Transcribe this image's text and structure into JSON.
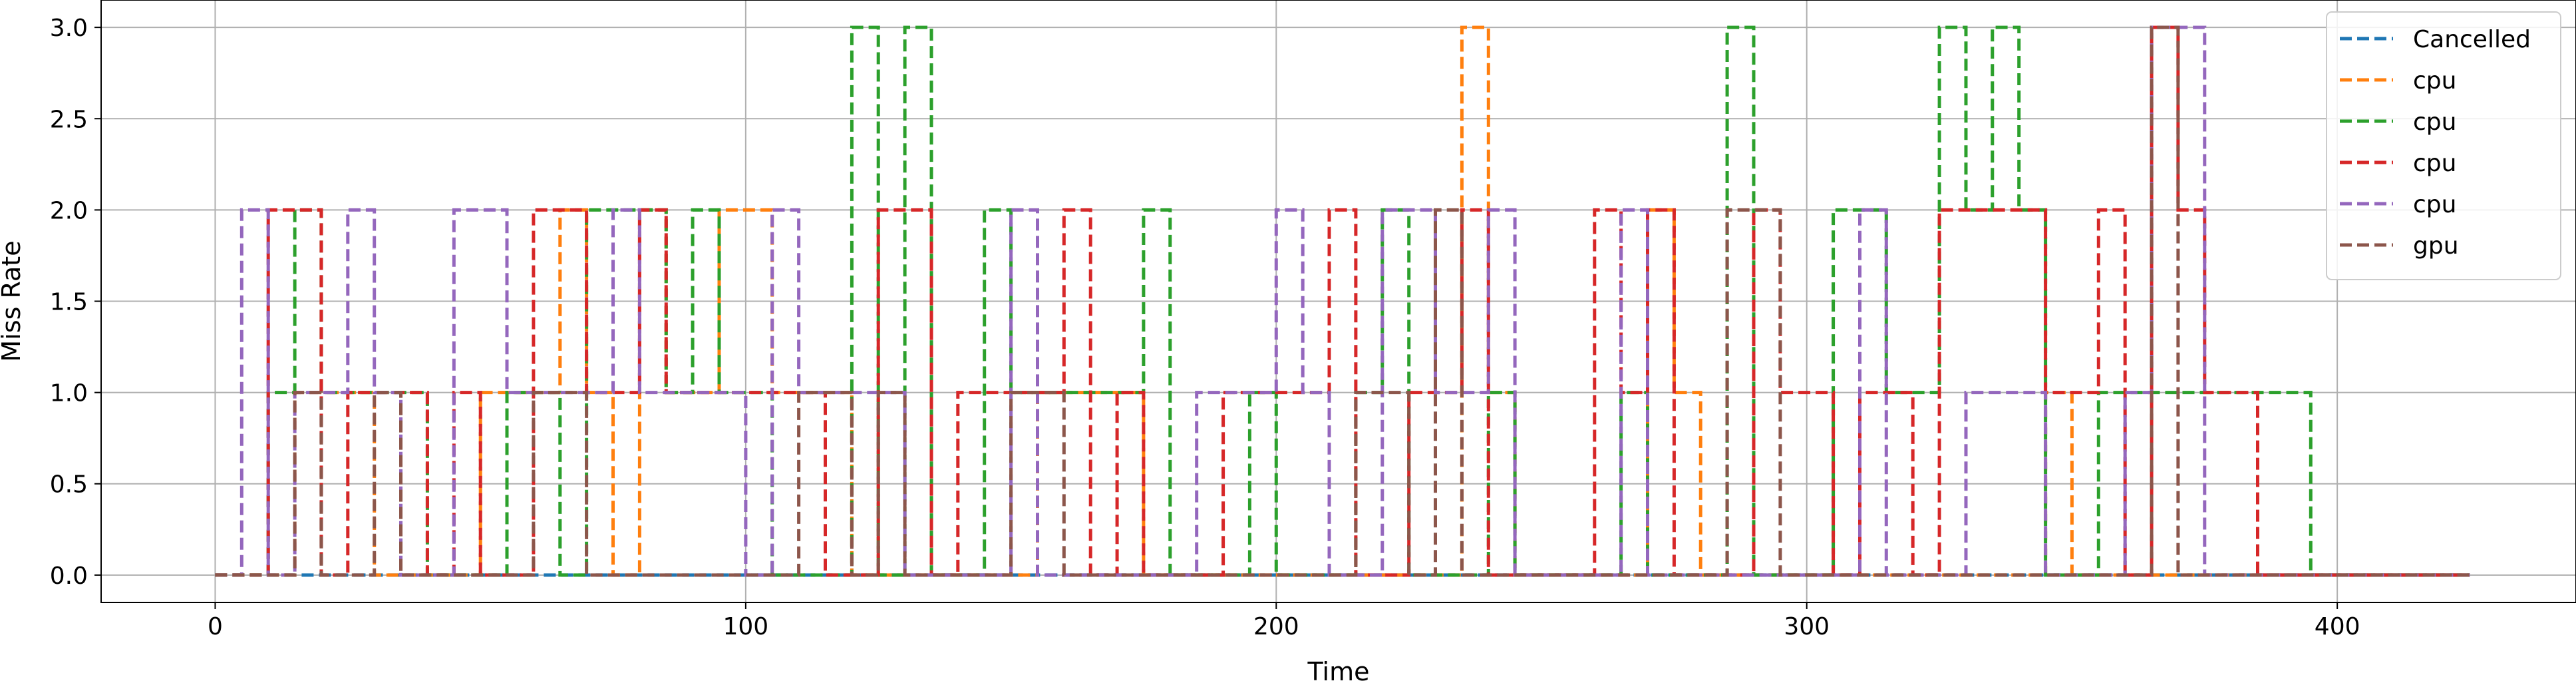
{
  "chart_data": {
    "type": "line",
    "step": "post",
    "title": "",
    "xlabel": "Time",
    "ylabel": "Miss Rate",
    "xlim": [
      -21.5,
      445
    ],
    "ylim": [
      -0.15,
      3.15
    ],
    "xticks": [
      0,
      100,
      200,
      300,
      400
    ],
    "yticks": [
      0.0,
      0.5,
      1.0,
      1.5,
      2.0,
      2.5,
      3.0
    ],
    "xtick_labels": [
      "0",
      "100",
      "200",
      "300",
      "400"
    ],
    "ytick_labels": [
      "0.0",
      "0.5",
      "1.0",
      "1.5",
      "2.0",
      "2.5",
      "3.0"
    ],
    "grid": true,
    "line_style": "dashed",
    "legend_position": "top-right",
    "series": [
      {
        "name": "Cancelled",
        "color": "#1f77b4",
        "points": [
          [
            0,
            0
          ],
          [
            425,
            0
          ]
        ]
      },
      {
        "name": "cpu",
        "color": "#ff7f0e",
        "points": [
          [
            0,
            0
          ],
          [
            15,
            0
          ],
          [
            15,
            1
          ],
          [
            30,
            1
          ],
          [
            30,
            0
          ],
          [
            50,
            0
          ],
          [
            50,
            1
          ],
          [
            65,
            1
          ],
          [
            65,
            2
          ],
          [
            70,
            2
          ],
          [
            70,
            1
          ],
          [
            75,
            1
          ],
          [
            75,
            0
          ],
          [
            80,
            0
          ],
          [
            80,
            2
          ],
          [
            85,
            2
          ],
          [
            85,
            1
          ],
          [
            95,
            1
          ],
          [
            95,
            2
          ],
          [
            105,
            2
          ],
          [
            105,
            1
          ],
          [
            120,
            1
          ],
          [
            120,
            0
          ],
          [
            155,
            0
          ],
          [
            155,
            1
          ],
          [
            175,
            1
          ],
          [
            175,
            0
          ],
          [
            235,
            0
          ],
          [
            235,
            3
          ],
          [
            240,
            3
          ],
          [
            240,
            1
          ],
          [
            245,
            1
          ],
          [
            245,
            0
          ],
          [
            270,
            0
          ],
          [
            270,
            2
          ],
          [
            275,
            2
          ],
          [
            275,
            1
          ],
          [
            280,
            1
          ],
          [
            280,
            0
          ],
          [
            345,
            0
          ],
          [
            345,
            1
          ],
          [
            350,
            1
          ],
          [
            350,
            0
          ],
          [
            425,
            0
          ]
        ]
      },
      {
        "name": "cpu",
        "color": "#2ca02c",
        "points": [
          [
            0,
            0
          ],
          [
            10,
            0
          ],
          [
            10,
            1
          ],
          [
            15,
            1
          ],
          [
            15,
            2
          ],
          [
            20,
            2
          ],
          [
            20,
            1
          ],
          [
            40,
            1
          ],
          [
            40,
            0
          ],
          [
            55,
            0
          ],
          [
            55,
            1
          ],
          [
            65,
            1
          ],
          [
            65,
            0
          ],
          [
            70,
            0
          ],
          [
            70,
            2
          ],
          [
            85,
            2
          ],
          [
            85,
            1
          ],
          [
            90,
            1
          ],
          [
            90,
            2
          ],
          [
            95,
            2
          ],
          [
            95,
            1
          ],
          [
            105,
            1
          ],
          [
            105,
            0
          ],
          [
            120,
            0
          ],
          [
            120,
            3
          ],
          [
            125,
            3
          ],
          [
            125,
            0
          ],
          [
            130,
            0
          ],
          [
            130,
            3
          ],
          [
            135,
            3
          ],
          [
            135,
            0
          ],
          [
            145,
            0
          ],
          [
            145,
            2
          ],
          [
            150,
            2
          ],
          [
            150,
            1
          ],
          [
            175,
            1
          ],
          [
            175,
            2
          ],
          [
            180,
            2
          ],
          [
            180,
            0
          ],
          [
            195,
            0
          ],
          [
            195,
            1
          ],
          [
            200,
            1
          ],
          [
            200,
            0
          ],
          [
            215,
            0
          ],
          [
            215,
            1
          ],
          [
            220,
            1
          ],
          [
            220,
            2
          ],
          [
            225,
            2
          ],
          [
            225,
            0
          ],
          [
            240,
            0
          ],
          [
            240,
            1
          ],
          [
            245,
            1
          ],
          [
            245,
            0
          ],
          [
            265,
            0
          ],
          [
            265,
            1
          ],
          [
            270,
            1
          ],
          [
            270,
            0
          ],
          [
            285,
            0
          ],
          [
            285,
            3
          ],
          [
            290,
            3
          ],
          [
            290,
            0
          ],
          [
            305,
            0
          ],
          [
            305,
            2
          ],
          [
            315,
            2
          ],
          [
            315,
            1
          ],
          [
            325,
            1
          ],
          [
            325,
            3
          ],
          [
            330,
            3
          ],
          [
            330,
            2
          ],
          [
            335,
            2
          ],
          [
            335,
            3
          ],
          [
            340,
            3
          ],
          [
            340,
            2
          ],
          [
            345,
            2
          ],
          [
            345,
            0
          ],
          [
            355,
            0
          ],
          [
            355,
            1
          ],
          [
            390,
            1
          ],
          [
            390,
            1
          ],
          [
            395,
            1
          ],
          [
            395,
            0
          ],
          [
            425,
            0
          ]
        ]
      },
      {
        "name": "cpu",
        "color": "#d62728",
        "points": [
          [
            0,
            0
          ],
          [
            10,
            0
          ],
          [
            10,
            2
          ],
          [
            20,
            2
          ],
          [
            20,
            0
          ],
          [
            25,
            0
          ],
          [
            25,
            1
          ],
          [
            40,
            1
          ],
          [
            40,
            0
          ],
          [
            45,
            0
          ],
          [
            45,
            1
          ],
          [
            50,
            1
          ],
          [
            50,
            0
          ],
          [
            60,
            0
          ],
          [
            60,
            2
          ],
          [
            70,
            2
          ],
          [
            70,
            1
          ],
          [
            80,
            1
          ],
          [
            80,
            2
          ],
          [
            85,
            2
          ],
          [
            85,
            1
          ],
          [
            115,
            1
          ],
          [
            115,
            0
          ],
          [
            125,
            0
          ],
          [
            125,
            2
          ],
          [
            135,
            2
          ],
          [
            135,
            0
          ],
          [
            140,
            0
          ],
          [
            140,
            1
          ],
          [
            160,
            1
          ],
          [
            160,
            2
          ],
          [
            165,
            2
          ],
          [
            165,
            0
          ],
          [
            170,
            0
          ],
          [
            170,
            1
          ],
          [
            175,
            1
          ],
          [
            175,
            0
          ],
          [
            190,
            0
          ],
          [
            190,
            1
          ],
          [
            210,
            1
          ],
          [
            210,
            2
          ],
          [
            215,
            2
          ],
          [
            215,
            0
          ],
          [
            225,
            0
          ],
          [
            225,
            1
          ],
          [
            235,
            1
          ],
          [
            235,
            2
          ],
          [
            240,
            2
          ],
          [
            240,
            0
          ],
          [
            260,
            0
          ],
          [
            260,
            2
          ],
          [
            265,
            2
          ],
          [
            265,
            1
          ],
          [
            270,
            1
          ],
          [
            270,
            2
          ],
          [
            275,
            2
          ],
          [
            275,
            0
          ],
          [
            290,
            0
          ],
          [
            290,
            2
          ],
          [
            295,
            2
          ],
          [
            295,
            1
          ],
          [
            305,
            1
          ],
          [
            305,
            0
          ],
          [
            310,
            0
          ],
          [
            310,
            1
          ],
          [
            320,
            1
          ],
          [
            320,
            0
          ],
          [
            325,
            0
          ],
          [
            325,
            2
          ],
          [
            345,
            2
          ],
          [
            345,
            1
          ],
          [
            355,
            1
          ],
          [
            355,
            2
          ],
          [
            360,
            2
          ],
          [
            360,
            0
          ],
          [
            365,
            0
          ],
          [
            365,
            3
          ],
          [
            370,
            3
          ],
          [
            370,
            2
          ],
          [
            375,
            2
          ],
          [
            375,
            1
          ],
          [
            385,
            1
          ],
          [
            385,
            0
          ],
          [
            425,
            0
          ]
        ]
      },
      {
        "name": "cpu",
        "color": "#9467bd",
        "points": [
          [
            0,
            0
          ],
          [
            5,
            0
          ],
          [
            5,
            2
          ],
          [
            10,
            2
          ],
          [
            10,
            0
          ],
          [
            15,
            0
          ],
          [
            15,
            1
          ],
          [
            25,
            1
          ],
          [
            25,
            2
          ],
          [
            30,
            2
          ],
          [
            30,
            1
          ],
          [
            35,
            1
          ],
          [
            35,
            0
          ],
          [
            45,
            0
          ],
          [
            45,
            2
          ],
          [
            55,
            2
          ],
          [
            55,
            1
          ],
          [
            75,
            1
          ],
          [
            75,
            2
          ],
          [
            80,
            2
          ],
          [
            80,
            1
          ],
          [
            100,
            1
          ],
          [
            100,
            0
          ],
          [
            105,
            0
          ],
          [
            105,
            2
          ],
          [
            110,
            2
          ],
          [
            110,
            1
          ],
          [
            130,
            1
          ],
          [
            130,
            0
          ],
          [
            150,
            0
          ],
          [
            150,
            2
          ],
          [
            155,
            2
          ],
          [
            155,
            0
          ],
          [
            170,
            0
          ],
          [
            170,
            0
          ],
          [
            185,
            0
          ],
          [
            185,
            1
          ],
          [
            200,
            1
          ],
          [
            200,
            2
          ],
          [
            205,
            2
          ],
          [
            205,
            1
          ],
          [
            210,
            1
          ],
          [
            210,
            0
          ],
          [
            220,
            0
          ],
          [
            220,
            2
          ],
          [
            230,
            2
          ],
          [
            230,
            1
          ],
          [
            240,
            1
          ],
          [
            240,
            2
          ],
          [
            245,
            2
          ],
          [
            245,
            0
          ],
          [
            265,
            0
          ],
          [
            265,
            2
          ],
          [
            270,
            2
          ],
          [
            270,
            0
          ],
          [
            310,
            0
          ],
          [
            310,
            2
          ],
          [
            315,
            2
          ],
          [
            315,
            0
          ],
          [
            330,
            0
          ],
          [
            330,
            1
          ],
          [
            345,
            1
          ],
          [
            345,
            0
          ],
          [
            360,
            0
          ],
          [
            360,
            1
          ],
          [
            365,
            1
          ],
          [
            365,
            3
          ],
          [
            375,
            3
          ],
          [
            375,
            0
          ],
          [
            425,
            0
          ]
        ]
      },
      {
        "name": "gpu",
        "color": "#8c564b",
        "points": [
          [
            0,
            0
          ],
          [
            15,
            0
          ],
          [
            15,
            1
          ],
          [
            20,
            1
          ],
          [
            20,
            0
          ],
          [
            30,
            0
          ],
          [
            30,
            1
          ],
          [
            35,
            1
          ],
          [
            35,
            0
          ],
          [
            60,
            0
          ],
          [
            60,
            1
          ],
          [
            70,
            1
          ],
          [
            70,
            0
          ],
          [
            110,
            0
          ],
          [
            110,
            1
          ],
          [
            120,
            1
          ],
          [
            120,
            0
          ],
          [
            125,
            0
          ],
          [
            125,
            1
          ],
          [
            130,
            1
          ],
          [
            130,
            0
          ],
          [
            150,
            0
          ],
          [
            150,
            1
          ],
          [
            160,
            1
          ],
          [
            160,
            0
          ],
          [
            215,
            0
          ],
          [
            215,
            1
          ],
          [
            225,
            1
          ],
          [
            225,
            0
          ],
          [
            230,
            0
          ],
          [
            230,
            2
          ],
          [
            235,
            2
          ],
          [
            235,
            0
          ],
          [
            285,
            0
          ],
          [
            285,
            2
          ],
          [
            295,
            2
          ],
          [
            295,
            0
          ],
          [
            365,
            0
          ],
          [
            365,
            3
          ],
          [
            370,
            3
          ],
          [
            370,
            0
          ],
          [
            425,
            0
          ]
        ]
      }
    ]
  }
}
